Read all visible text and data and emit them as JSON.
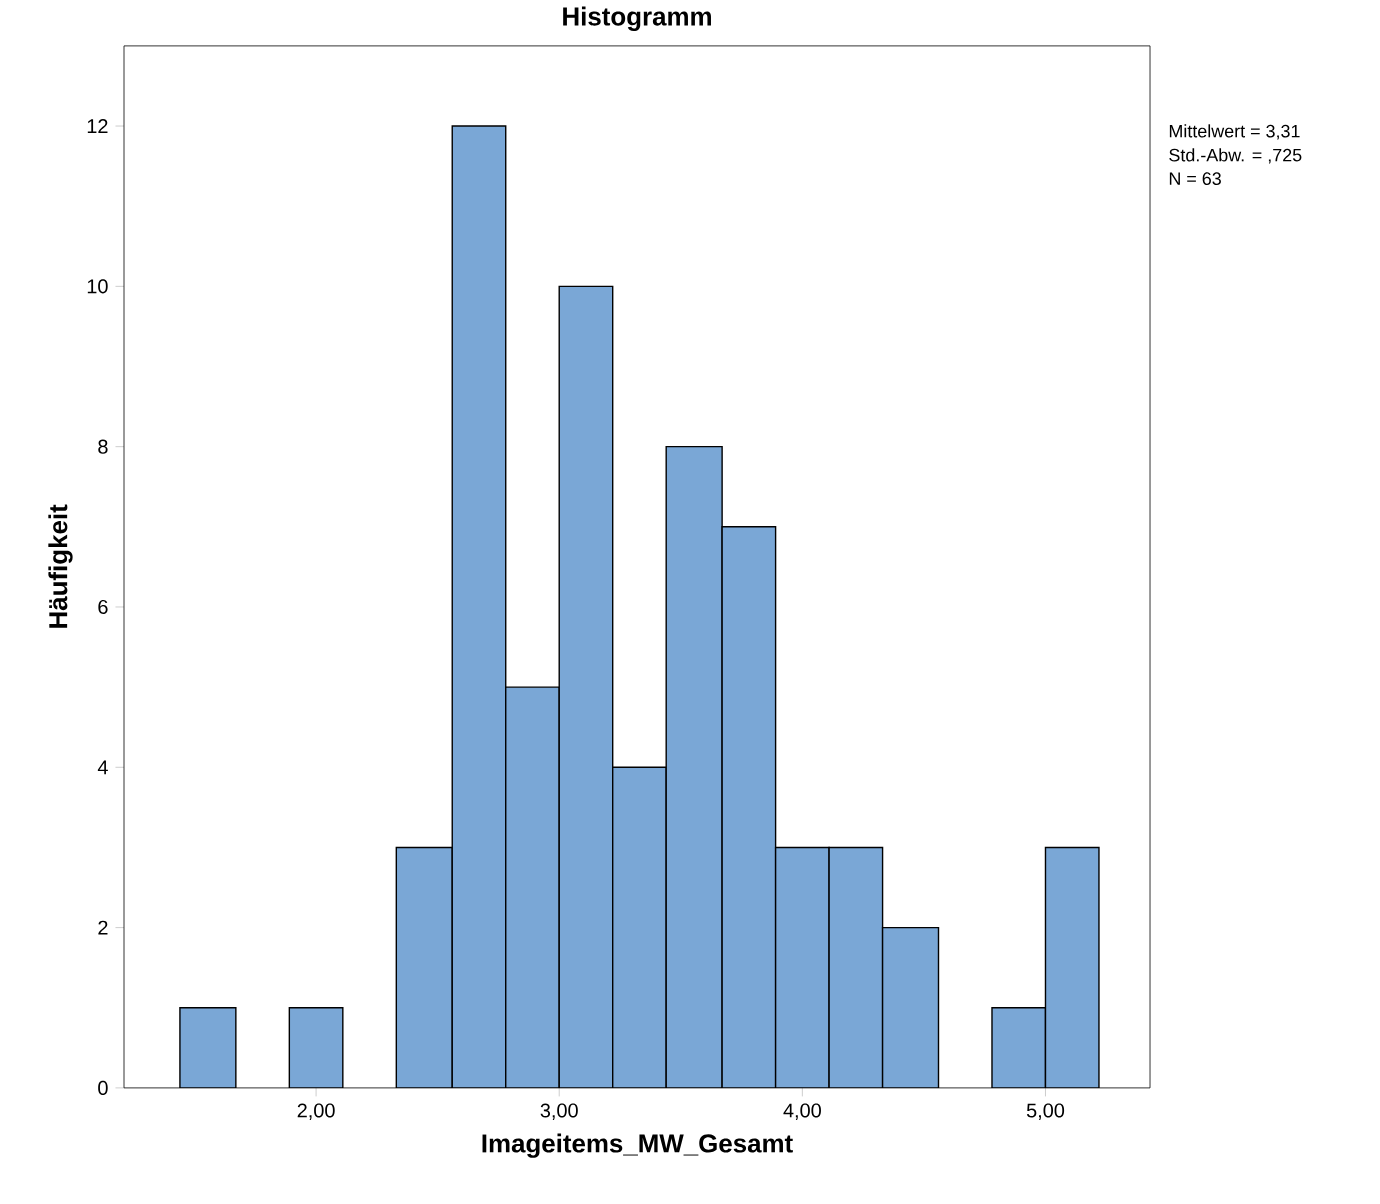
{
  "chart_data": {
    "type": "histogram",
    "title": "Histogramm",
    "xlabel": "Imageitems_MW_Gesamt",
    "ylabel": "Häufigkeit",
    "bins": [
      1.44,
      1.67,
      1.89,
      2.11,
      2.33,
      2.56,
      2.78,
      3.0,
      3.22,
      3.44,
      3.67,
      3.89,
      4.11,
      4.33,
      4.56,
      4.78,
      5.0,
      5.22
    ],
    "values": [
      1,
      0,
      1,
      0,
      3,
      12,
      5,
      10,
      4,
      8,
      7,
      3,
      3,
      2,
      0,
      1,
      3
    ],
    "color": "#7aa7d6",
    "xlim": [
      1.21,
      5.43
    ],
    "ylim": [
      0,
      13
    ],
    "xticks": [
      {
        "value": 2,
        "label": "2,00"
      },
      {
        "value": 3,
        "label": "3,00"
      },
      {
        "value": 4,
        "label": "4,00"
      },
      {
        "value": 5,
        "label": "5,00"
      }
    ],
    "yticks": [
      0,
      2,
      4,
      6,
      8,
      10,
      12
    ],
    "annotations": [
      "Mittelwert = 3,31",
      "Std.-Abw. = ,725",
      "N = 63"
    ],
    "grid": false
  }
}
